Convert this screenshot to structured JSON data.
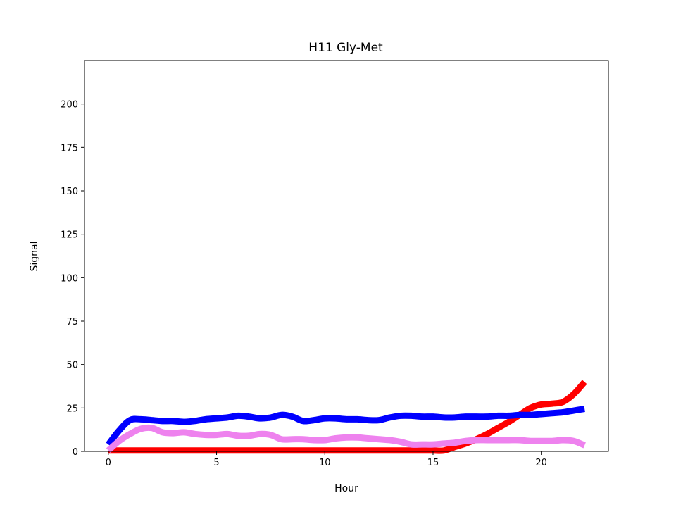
{
  "chart_data": {
    "type": "line",
    "title": "H11 Gly-Met",
    "xlabel": "Hour",
    "ylabel": "Signal",
    "xlim": [
      -1.1,
      23.1
    ],
    "ylim": [
      0,
      225
    ],
    "xticks": [
      0,
      5,
      10,
      15,
      20
    ],
    "yticks": [
      0,
      25,
      50,
      75,
      100,
      125,
      150,
      175,
      200
    ],
    "grid": false,
    "legend": false,
    "x": [
      0,
      0.5,
      1,
      1.5,
      2,
      2.5,
      3,
      3.5,
      4,
      4.5,
      5,
      5.5,
      6,
      6.5,
      7,
      7.5,
      8,
      8.5,
      9,
      9.5,
      10,
      10.5,
      11,
      11.5,
      12,
      12.5,
      13,
      13.5,
      14,
      14.5,
      15,
      15.5,
      16,
      16.5,
      17,
      17.5,
      18,
      18.5,
      19,
      19.5,
      20,
      20.5,
      21,
      21.5,
      22
    ],
    "series": [
      {
        "color": "#ff0000",
        "values": [
          0.5,
          0.5,
          0.5,
          0.5,
          0.5,
          0.5,
          0.5,
          0.5,
          0.5,
          0.5,
          0.5,
          0.5,
          0.5,
          0.5,
          0.5,
          0.5,
          0.5,
          0.5,
          0.5,
          0.5,
          0.5,
          0.5,
          0.5,
          0.5,
          0.5,
          0.5,
          0.5,
          0.5,
          0.5,
          0.5,
          0.5,
          0.5,
          2.5,
          4.5,
          7,
          10,
          13.5,
          17,
          21,
          25,
          27,
          27.5,
          28.5,
          33,
          40
        ]
      },
      {
        "color": "#0000ff",
        "values": [
          4,
          12,
          18,
          18.5,
          18,
          17.5,
          17.5,
          17,
          17.5,
          18.5,
          19,
          19.5,
          20.5,
          20,
          19,
          19.5,
          21,
          20,
          17.5,
          18,
          19,
          19,
          18.5,
          18.5,
          18,
          18,
          19.5,
          20.5,
          20.5,
          20,
          20,
          19.5,
          19.5,
          20,
          20,
          20,
          20.5,
          20.5,
          21,
          21,
          21.5,
          22,
          22.5,
          23.5,
          24.5
        ]
      },
      {
        "color": "#ee82ee",
        "values": [
          0.5,
          6,
          10,
          13,
          13.5,
          11,
          10.5,
          11,
          10,
          9.5,
          9.5,
          10,
          9,
          9,
          10,
          9.5,
          7,
          7,
          7,
          6.5,
          6.5,
          7.5,
          8,
          8,
          7.5,
          7,
          6.5,
          5.5,
          4,
          4,
          4,
          4.5,
          5,
          6,
          6.5,
          6.5,
          6.5,
          6.5,
          6.5,
          6,
          6,
          6,
          6.5,
          6,
          3.5
        ]
      }
    ]
  }
}
